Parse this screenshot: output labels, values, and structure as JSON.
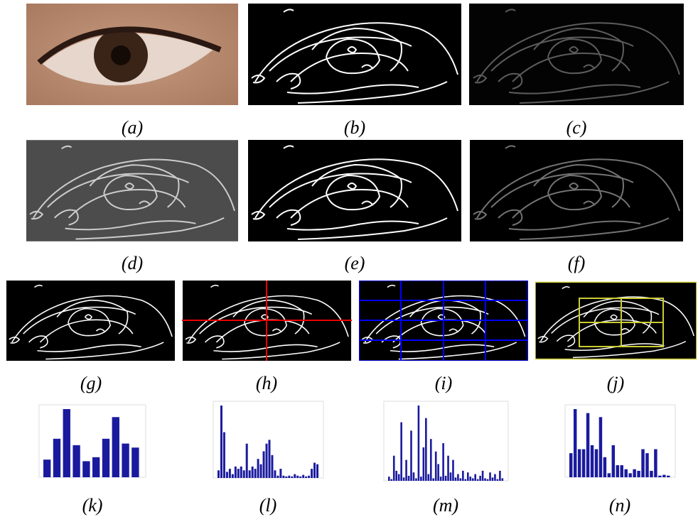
{
  "panels": [
    {
      "label": "(a)"
    },
    {
      "label": "(b)"
    },
    {
      "label": "(c)"
    },
    {
      "label": "(d)"
    },
    {
      "label": "(e)"
    },
    {
      "label": "(f)"
    },
    {
      "label": "(g)"
    },
    {
      "label": "(h)"
    },
    {
      "label": "(i)"
    },
    {
      "label": "(j)"
    },
    {
      "label": "(k)",
      "bars": [
        22,
        48,
        85,
        40,
        20,
        25,
        48,
        75,
        42,
        37
      ]
    },
    {
      "label": "(l)",
      "bars": [
        10,
        95,
        60,
        8,
        12,
        5,
        15,
        12,
        15,
        10,
        45,
        10,
        15,
        12,
        25,
        18,
        35,
        45,
        50,
        30,
        10,
        3,
        12,
        3,
        2,
        3,
        2,
        5,
        3,
        2,
        4,
        2,
        3,
        12,
        20,
        18
      ]
    },
    {
      "label": "(m)",
      "bars": [
        5,
        2,
        30,
        12,
        8,
        70,
        4,
        25,
        6,
        60,
        10,
        3,
        90,
        5,
        40,
        75,
        8,
        50,
        3,
        35,
        20,
        5,
        45,
        6,
        30,
        10,
        25,
        4,
        8,
        3,
        12,
        2,
        10,
        5,
        3,
        8,
        2,
        6,
        12,
        3,
        2,
        10,
        4,
        8,
        2,
        12,
        3
      ]
    },
    {
      "label": "(n)",
      "bars": [
        30,
        85,
        35,
        35,
        80,
        40,
        35,
        75,
        25,
        5,
        40,
        15,
        15,
        10,
        5,
        10,
        8,
        35,
        30,
        8,
        35,
        2,
        3,
        2
      ]
    }
  ]
}
